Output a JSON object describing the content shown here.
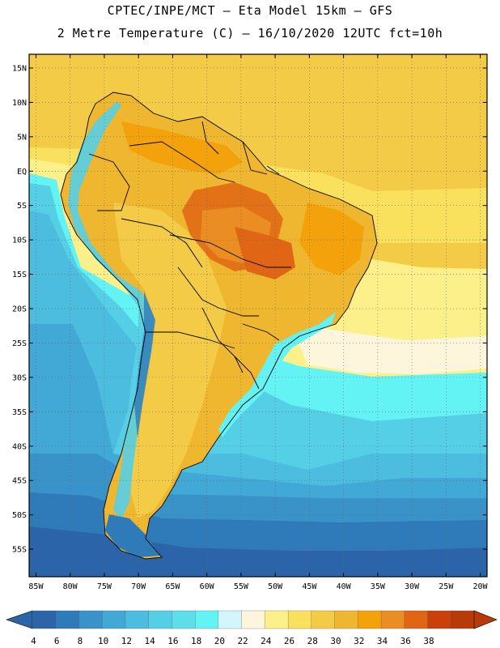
{
  "header": {
    "line1": "CPTEC/INPE/MCT –  Eta Model 15km – GFS",
    "line2": "2 Metre Temperature (C) – 16/10/2020 12UTC fct=10h"
  },
  "map": {
    "lon_range": [
      -86,
      -19
    ],
    "lat_range": [
      -59,
      17
    ],
    "lat_ticks": [
      {
        "value": 15,
        "label": "15N"
      },
      {
        "value": 10,
        "label": "10N"
      },
      {
        "value": 5,
        "label": "5N"
      },
      {
        "value": 0,
        "label": "EQ"
      },
      {
        "value": -5,
        "label": "5S"
      },
      {
        "value": -10,
        "label": "10S"
      },
      {
        "value": -15,
        "label": "15S"
      },
      {
        "value": -20,
        "label": "20S"
      },
      {
        "value": -25,
        "label": "25S"
      },
      {
        "value": -30,
        "label": "30S"
      },
      {
        "value": -35,
        "label": "35S"
      },
      {
        "value": -40,
        "label": "40S"
      },
      {
        "value": -45,
        "label": "45S"
      },
      {
        "value": -50,
        "label": "50S"
      },
      {
        "value": -55,
        "label": "55S"
      }
    ],
    "lon_ticks": [
      {
        "value": -85,
        "label": "85W"
      },
      {
        "value": -80,
        "label": "80W"
      },
      {
        "value": -75,
        "label": "75W"
      },
      {
        "value": -70,
        "label": "70W"
      },
      {
        "value": -65,
        "label": "65W"
      },
      {
        "value": -60,
        "label": "60W"
      },
      {
        "value": -55,
        "label": "55W"
      },
      {
        "value": -50,
        "label": "50W"
      },
      {
        "value": -45,
        "label": "45W"
      },
      {
        "value": -40,
        "label": "40W"
      },
      {
        "value": -35,
        "label": "35W"
      },
      {
        "value": -30,
        "label": "30W"
      },
      {
        "value": -25,
        "label": "25W"
      },
      {
        "value": -20,
        "label": "20W"
      }
    ]
  },
  "colorbar": {
    "labels": [
      "4",
      "6",
      "8",
      "10",
      "12",
      "14",
      "16",
      "18",
      "20",
      "22",
      "24",
      "26",
      "28",
      "30",
      "32",
      "34",
      "36",
      "38"
    ],
    "colors": [
      "#2b64a8",
      "#2f7ab8",
      "#3a93c8",
      "#42a8d6",
      "#4cbddf",
      "#55cfe6",
      "#5ddeea",
      "#63f3f5",
      "#d2f6fb",
      "#fdf6dc",
      "#fcf08a",
      "#f9e05d",
      "#f3cb47",
      "#efb72f",
      "#f3a20b",
      "#ea8d22",
      "#e06514",
      "#c9400a",
      "#b83a08"
    ],
    "low_color": "#2b64a8",
    "high_color": "#b83a08"
  }
}
